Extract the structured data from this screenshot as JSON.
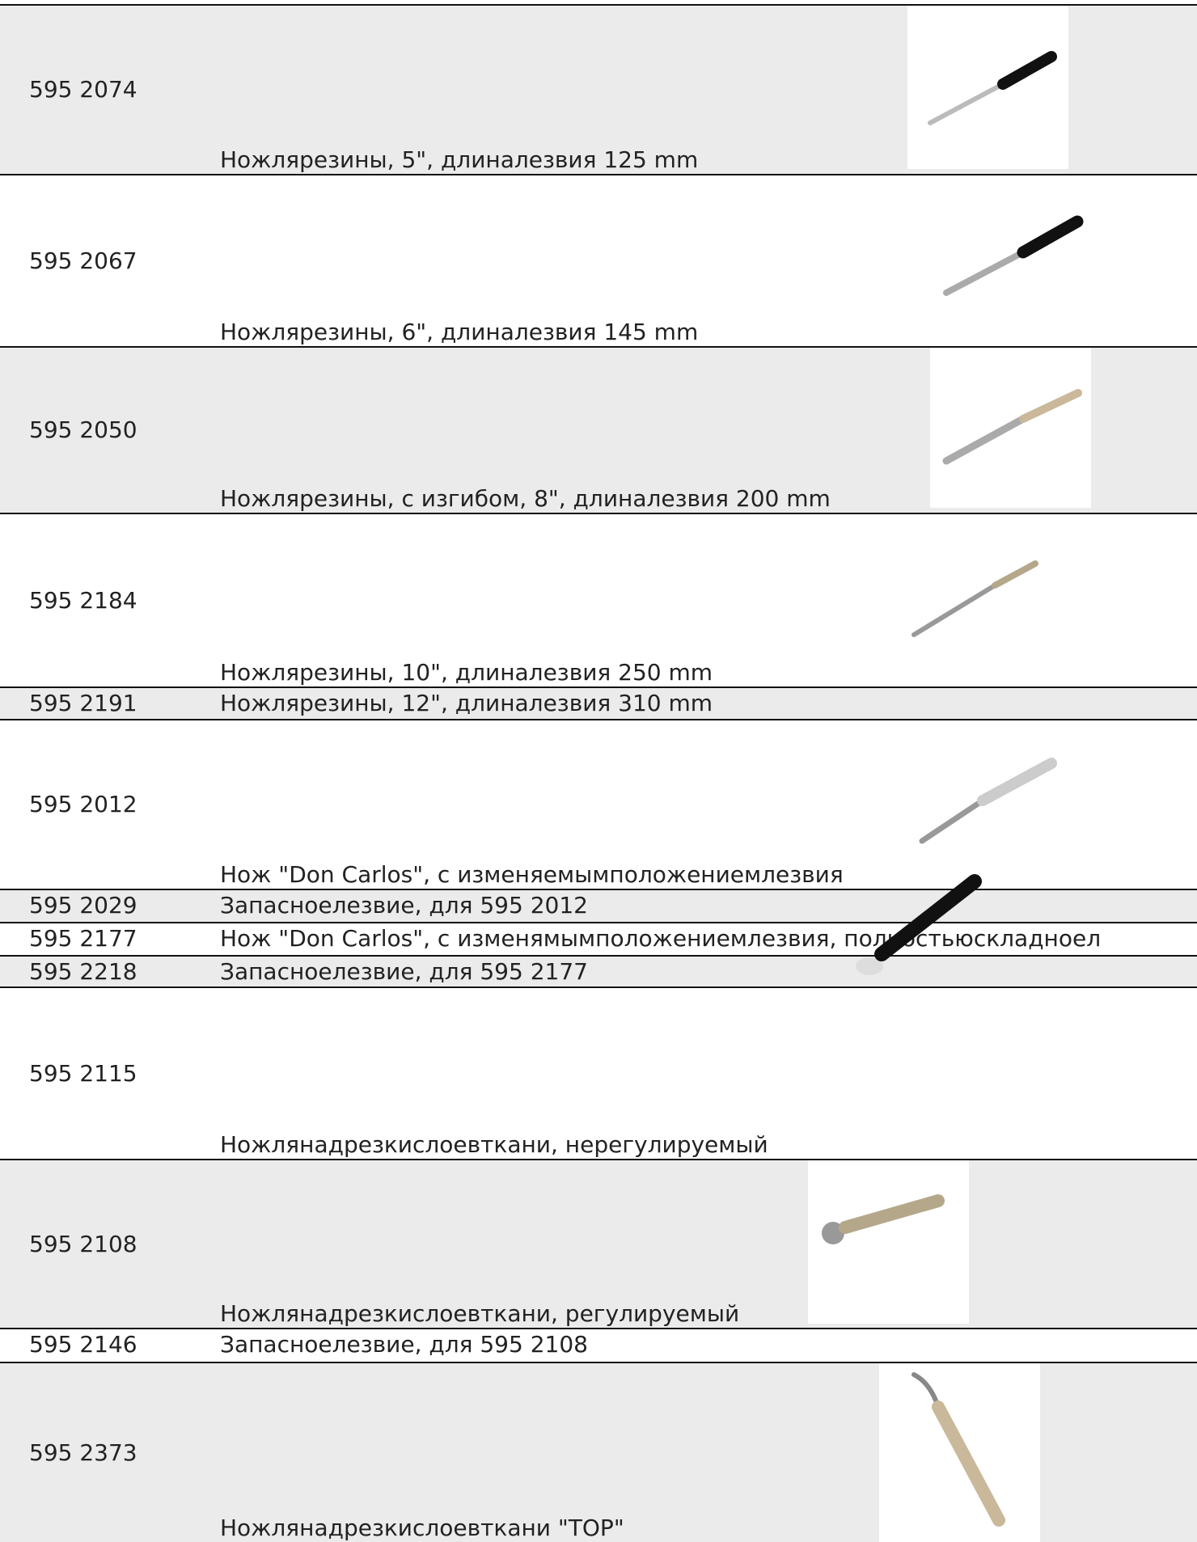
{
  "table": {
    "rows": [
      {
        "code": "595 2074",
        "description": "Ножлярезины, 5\", длиналезвия 125 mm"
      },
      {
        "code": "595 2067",
        "description": "Ножлярезины, 6\", длиналезвия 145 mm"
      },
      {
        "code": "595 2050",
        "description": "Ножлярезины, с изгибом, 8\", длиналезвия 200 mm"
      },
      {
        "code": "595 2184",
        "description": "Ножлярезины, 10\", длиналезвия 250 mm"
      },
      {
        "code": "595 2191",
        "description": "Ножлярезины, 12\", длиналезвия 310 mm"
      },
      {
        "code": "595 2012",
        "description": "Нож \"Don Carlos\", с изменяемымположениемлезвия"
      },
      {
        "code": "595 2029",
        "description": "Запасноелезвие, для 595 2012"
      },
      {
        "code": "595 2177",
        "description": "Нож \"Don Carlos\", с изменямымположениемлезвия, полностьюскладноел"
      },
      {
        "code": "595 2218",
        "description": "Запасноелезвие, для 595 2177"
      },
      {
        "code": "595 2115",
        "description": "Ножлянадрезкислоевткани, нерегулируемый"
      },
      {
        "code": "595 2108",
        "description": "Ножлянадрезкислоевткани, регулируемый"
      },
      {
        "code": "595 2146",
        "description": "Запасноелезвие, для 595 2108"
      },
      {
        "code": "595 2373",
        "description": "Ножлянадрезкислоевткани \"TOP\""
      }
    ]
  }
}
